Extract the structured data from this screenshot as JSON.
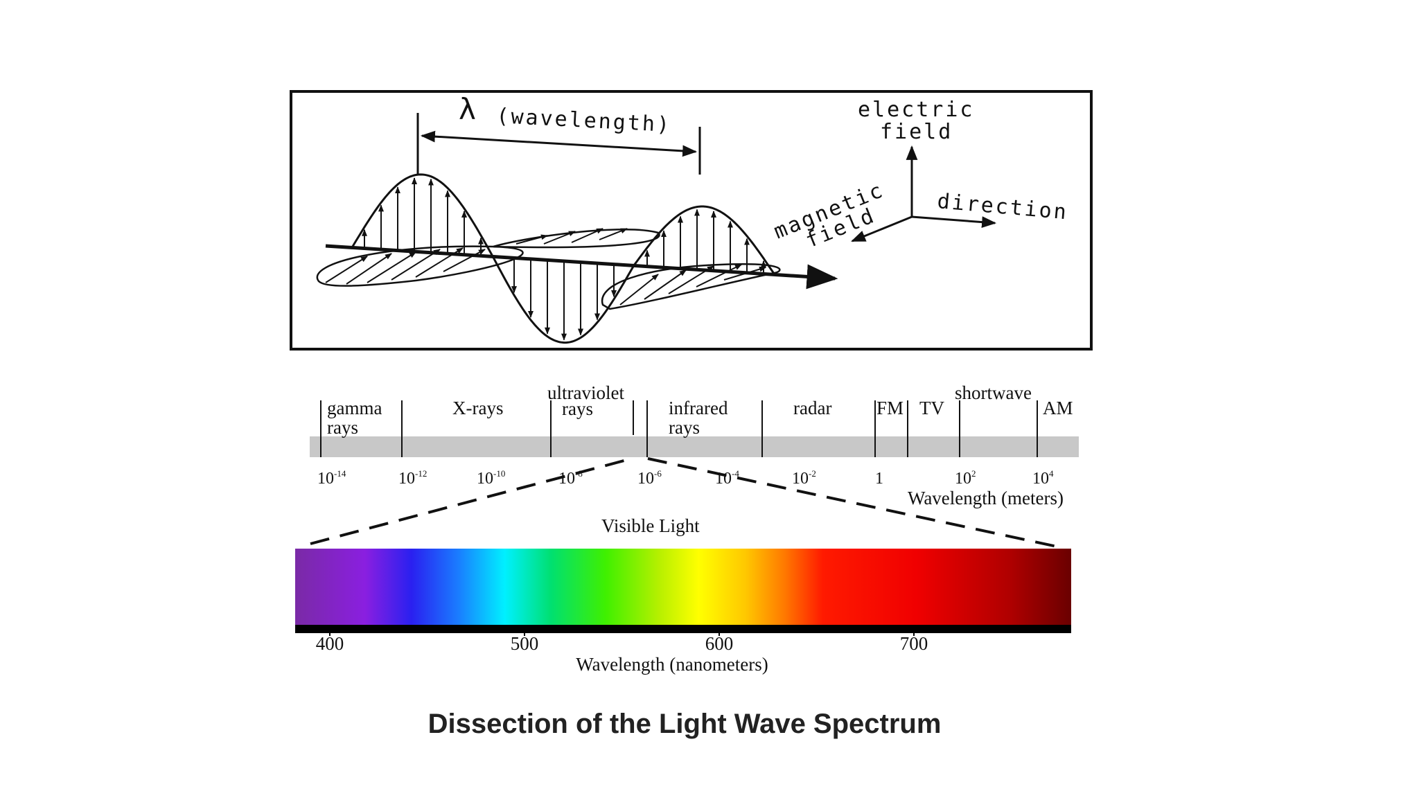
{
  "wave_diagram": {
    "lambda_symbol": "λ",
    "wavelength_label": "(wavelength)",
    "electric_label_line1": "electric",
    "electric_label_line2": "field",
    "magnetic_label_line1": "magnetic",
    "magnetic_label_line2": "field",
    "direction_label": "direction"
  },
  "em_spectrum": {
    "bands": [
      {
        "line1": "gamma",
        "line2": "rays"
      },
      {
        "line1": "X-rays",
        "line2": ""
      },
      {
        "line1": "ultraviolet",
        "line2": "rays"
      },
      {
        "line1": "infrared",
        "line2": "rays"
      },
      {
        "line1": "radar",
        "line2": ""
      },
      {
        "line1": "FM",
        "line2": ""
      },
      {
        "line1": "TV",
        "line2": ""
      },
      {
        "line1": "shortwave",
        "line2": ""
      },
      {
        "line1": "AM",
        "line2": ""
      }
    ],
    "ticks": [
      {
        "base": "10",
        "exp": "-14"
      },
      {
        "base": "10",
        "exp": "-12"
      },
      {
        "base": "10",
        "exp": "-10"
      },
      {
        "base": "10",
        "exp": "-8"
      },
      {
        "base": "10",
        "exp": "-6"
      },
      {
        "base": "10",
        "exp": "-4"
      },
      {
        "base": "10",
        "exp": "-2"
      },
      {
        "base": "1",
        "exp": ""
      },
      {
        "base": "10",
        "exp": "2"
      },
      {
        "base": "10",
        "exp": "4"
      }
    ],
    "axis_label": "Wavelength (meters)"
  },
  "visible_light": {
    "title": "Visible Light",
    "ticks": [
      "400",
      "500",
      "600",
      "700"
    ],
    "axis_label": "Wavelength (nanometers)"
  },
  "caption": "Dissection of the Light Wave Spectrum"
}
